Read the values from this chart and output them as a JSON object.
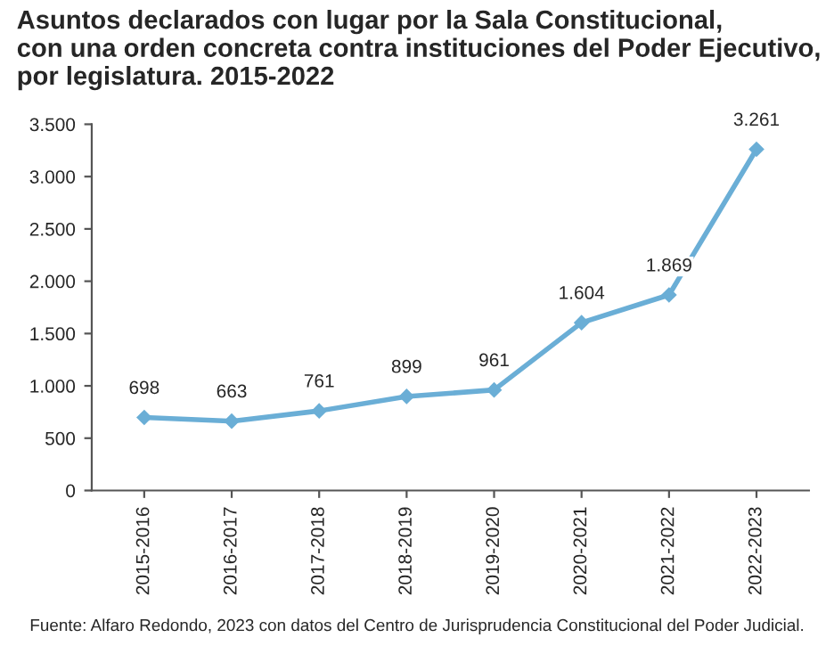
{
  "chart_data": {
    "type": "line",
    "title": "Asuntos declarados con lugar por la Sala Constitucional,\ncon una orden concreta contra instituciones del Poder Ejecutivo,\npor legislatura. 2015-2022",
    "categories": [
      "2015-2016",
      "2016-2017",
      "2017-2018",
      "2018-2019",
      "2019-2020",
      "2020-2021",
      "2021-2022",
      "2022-2023"
    ],
    "series": [
      {
        "color": "#6aaed6",
        "values": [
          698,
          663,
          761,
          899,
          961,
          1604,
          1869,
          3261
        ],
        "value_labels": [
          "698",
          "663",
          "761",
          "899",
          "961",
          "1.604",
          "1.869",
          "3.261"
        ]
      }
    ],
    "ylim": [
      0,
      3500
    ],
    "yticks": [
      0,
      500,
      {
        "value": 1000,
        "label": "1.000"
      },
      {
        "value": 1500,
        "label": "1.500"
      },
      {
        "value": 2000,
        "label": "2.000"
      },
      {
        "value": 2500,
        "label": "2.500"
      },
      {
        "value": 3000,
        "label": "3.000"
      },
      {
        "value": 3500,
        "label": "3.500"
      }
    ],
    "marker": "diamond",
    "line_style": "solid",
    "grid": false,
    "annotations": [
      "Fuente: Alfaro Redondo, 2023 con datos del Centro de Jurisprudencia Constitucional del Poder Judicial."
    ]
  }
}
